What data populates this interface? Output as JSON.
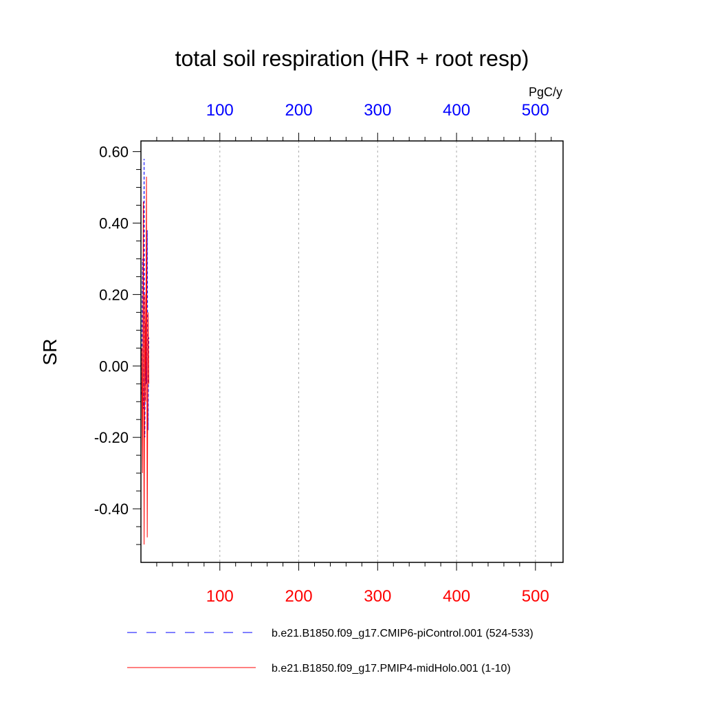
{
  "chart_data": {
    "type": "line",
    "title": "total soil respiration (HR + root resp)",
    "ylabel": "SR",
    "top_axis_units": "PgC/y",
    "xlim": [
      0,
      535
    ],
    "ylim": [
      -0.55,
      0.63
    ],
    "yticks": [
      -0.4,
      -0.2,
      0.0,
      0.2,
      0.4,
      0.6
    ],
    "ytick_labels": [
      "-0.40",
      "-0.20",
      "0.00",
      "0.20",
      "0.40",
      "0.60"
    ],
    "xticks": [
      100,
      200,
      300,
      400,
      500
    ],
    "xtick_labels": [
      "100",
      "200",
      "300",
      "400",
      "500"
    ],
    "bottom_axis_color": "#ff0000",
    "top_axis_color": "#0000ff",
    "vertical_grid": true,
    "legend_position": "bottom",
    "series": [
      {
        "name": "b.e21.B1850.f09_g17.CMIP6-piControl.001 (524-533)",
        "color": "#0000ff",
        "dash": "dashed",
        "x": [
          1,
          2,
          3,
          4,
          5,
          6,
          7,
          8,
          9,
          10
        ],
        "y": [
          -0.08,
          0.3,
          -0.12,
          0.58,
          -0.2,
          0.12,
          -0.05,
          0.38,
          -0.18,
          0.08
        ]
      },
      {
        "name": "b.e21.B1850.f09_g17.PMIP4-midHolo.001 (1-10)",
        "color": "#ff0000",
        "dash": "solid",
        "x": [
          1,
          2,
          3,
          4,
          5,
          6,
          7,
          8,
          9,
          10
        ],
        "y": [
          0.05,
          -0.3,
          0.46,
          -0.5,
          0.2,
          -0.1,
          0.53,
          -0.48,
          0.15,
          -0.05
        ]
      }
    ]
  }
}
